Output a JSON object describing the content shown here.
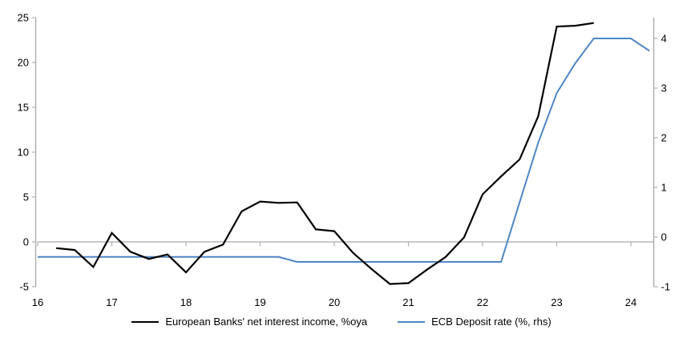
{
  "chart_data": {
    "type": "line",
    "title": "",
    "xlabel": "",
    "ylabel_left": "",
    "ylabel_right": "",
    "grid": false,
    "zero_line": true,
    "legend_position": "bottom-center",
    "x_range": [
      16,
      24.303
    ],
    "x_ticks": [
      16,
      17,
      18,
      19,
      20,
      21,
      22,
      23,
      24
    ],
    "axes": {
      "left": {
        "ticks": [
          -5,
          0,
          5,
          10,
          15,
          20,
          25
        ],
        "range": [
          -5,
          25
        ]
      },
      "right": {
        "ticks": [
          -1,
          0,
          1,
          2,
          3,
          4
        ],
        "range": [
          -1,
          4.42
        ]
      }
    },
    "series": [
      {
        "name": "European Banks' net interest income, %oya",
        "axis": "left",
        "color": "#000000",
        "width": 2.2,
        "x": [
          16.25,
          16.5,
          16.75,
          17.0,
          17.25,
          17.5,
          17.75,
          18.0,
          18.25,
          18.5,
          18.75,
          19.0,
          19.25,
          19.5,
          19.75,
          20.0,
          20.25,
          20.5,
          20.75,
          21.0,
          21.25,
          21.5,
          21.75,
          22.0,
          22.25,
          22.5,
          22.75,
          23.0,
          23.25,
          23.5
        ],
        "values": [
          -0.7,
          -0.9,
          -2.8,
          1.0,
          -1.1,
          -1.9,
          -1.4,
          -3.4,
          -1.1,
          -0.3,
          3.4,
          4.5,
          4.35,
          4.4,
          1.4,
          1.2,
          -1.2,
          -3.0,
          -4.7,
          -4.6,
          -3.1,
          -1.7,
          0.5,
          5.3,
          7.3,
          9.2,
          14.0,
          24.0,
          24.1,
          24.4
        ]
      },
      {
        "name": "ECB Deposit rate (%, rhs)",
        "axis": "right",
        "color": "#4e86c6",
        "width": 2,
        "x": [
          16.0,
          16.25,
          16.5,
          16.75,
          17.0,
          17.25,
          17.5,
          17.75,
          18.0,
          18.25,
          18.5,
          18.75,
          19.0,
          19.25,
          19.5,
          19.75,
          20.0,
          20.25,
          20.5,
          20.75,
          21.0,
          21.25,
          21.5,
          21.75,
          22.0,
          22.25,
          22.5,
          22.75,
          23.0,
          23.25,
          23.5,
          23.75,
          24.0,
          24.25
        ],
        "values": [
          -0.4,
          -0.4,
          -0.4,
          -0.4,
          -0.4,
          -0.4,
          -0.4,
          -0.4,
          -0.4,
          -0.4,
          -0.4,
          -0.4,
          -0.4,
          -0.4,
          -0.5,
          -0.5,
          -0.5,
          -0.5,
          -0.5,
          -0.5,
          -0.5,
          -0.5,
          -0.5,
          -0.5,
          -0.5,
          -0.5,
          0.7,
          1.9,
          2.9,
          3.5,
          4.0,
          4.0,
          4.0,
          3.75
        ]
      }
    ]
  },
  "legend": {
    "items": [
      {
        "label": "European Banks' net interest income, %oya",
        "color": "#000000"
      },
      {
        "label": "ECB Deposit rate (%, rhs)",
        "color": "#4e86c6"
      }
    ]
  },
  "colors": {
    "axis": "#b0b0b0",
    "zero_line": "#a8a8a8",
    "text": "#000000",
    "background": "#ffffff"
  }
}
